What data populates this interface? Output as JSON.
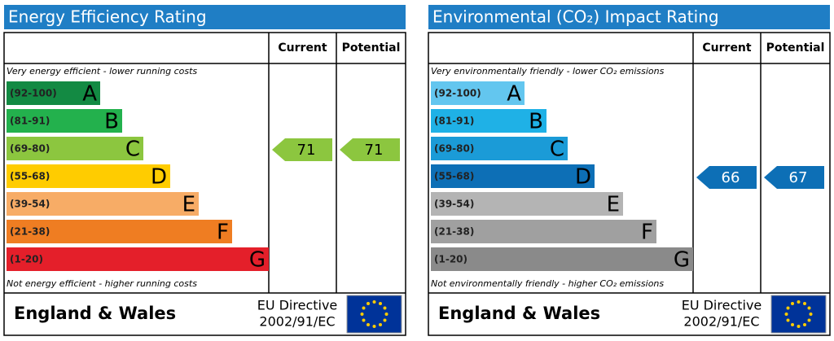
{
  "panels": [
    {
      "title": "Energy Efficiency Rating",
      "columns": [
        "Current",
        "Potential"
      ],
      "top_note": "Very energy efficient - lower running costs",
      "bottom_note": "Not energy efficient - higher running costs",
      "bands": [
        {
          "range": "(92-100)",
          "letter": "A",
          "color": "#138a43"
        },
        {
          "range": "(81-91)",
          "letter": "B",
          "color": "#23b14d"
        },
        {
          "range": "(69-80)",
          "letter": "C",
          "color": "#8cc63f"
        },
        {
          "range": "(55-68)",
          "letter": "D",
          "color": "#ffcc00"
        },
        {
          "range": "(39-54)",
          "letter": "E",
          "color": "#f7ac66"
        },
        {
          "range": "(21-38)",
          "letter": "F",
          "color": "#ef7d22"
        },
        {
          "range": "(1-20)",
          "letter": "G",
          "color": "#e41f2a"
        }
      ],
      "current": 71,
      "potential": 71,
      "footer": "England & Wales",
      "directive": [
        "EU Directive",
        "2002/91/EC"
      ]
    },
    {
      "title": "Environmental (CO₂) Impact Rating",
      "columns": [
        "Current",
        "Potential"
      ],
      "top_note": "Very environmentally friendly - lower CO₂ emissions",
      "bottom_note": "Not environmentally friendly - higher CO₂ emissions",
      "bands": [
        {
          "range": "(92-100)",
          "letter": "A",
          "color": "#63c6ef"
        },
        {
          "range": "(81-91)",
          "letter": "B",
          "color": "#1fb1e6"
        },
        {
          "range": "(69-80)",
          "letter": "C",
          "color": "#1b9bd7"
        },
        {
          "range": "(55-68)",
          "letter": "D",
          "color": "#0d6fb6"
        },
        {
          "range": "(39-54)",
          "letter": "E",
          "color": "#b4b4b4"
        },
        {
          "range": "(21-38)",
          "letter": "F",
          "color": "#a0a0a0"
        },
        {
          "range": "(1-20)",
          "letter": "G",
          "color": "#8a8a8a"
        }
      ],
      "current": 66,
      "potential": 67,
      "footer": "England & Wales",
      "directive": [
        "EU Directive",
        "2002/91/EC"
      ]
    }
  ]
}
